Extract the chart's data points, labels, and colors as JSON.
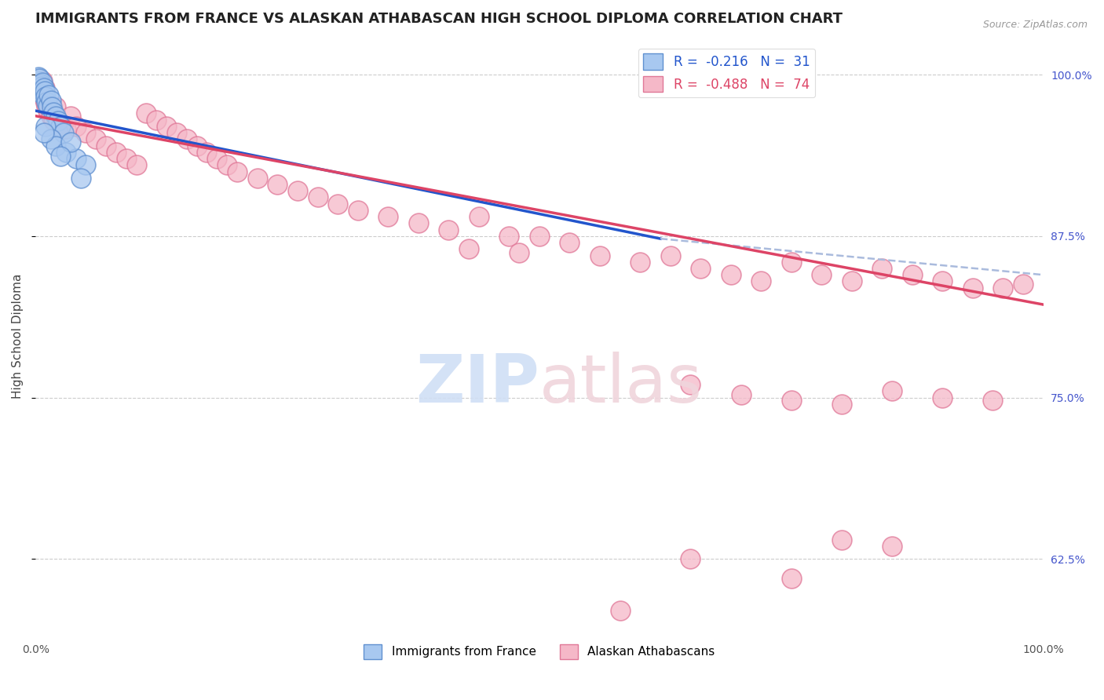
{
  "title": "IMMIGRANTS FROM FRANCE VS ALASKAN ATHABASCAN HIGH SCHOOL DIPLOMA CORRELATION CHART",
  "source": "Source: ZipAtlas.com",
  "ylabel": "High School Diploma",
  "xmin": 0.0,
  "xmax": 1.0,
  "ymin": 0.565,
  "ymax": 1.03,
  "yticks": [
    0.625,
    0.75,
    0.875,
    1.0
  ],
  "ytick_labels": [
    "62.5%",
    "75.0%",
    "87.5%",
    "100.0%"
  ],
  "xtick_labels": [
    "0.0%",
    "100.0%"
  ],
  "blue_label": "Immigrants from France",
  "pink_label": "Alaskan Athabascans",
  "blue_R": -0.216,
  "blue_N": 31,
  "pink_R": -0.488,
  "pink_N": 74,
  "blue_color": "#a8c8f0",
  "pink_color": "#f5b8c8",
  "blue_edge": "#6090d0",
  "pink_edge": "#e07898",
  "blue_line_color": "#2255cc",
  "pink_line_color": "#dd4466",
  "dash_line_color": "#aabbdd",
  "blue_line_y0": 0.972,
  "blue_line_y1": 0.873,
  "blue_line_x1": 0.62,
  "dash_line_x0": 0.62,
  "dash_line_x1": 1.0,
  "dash_line_y0": 0.873,
  "dash_line_y1": 0.845,
  "pink_line_y0": 0.968,
  "pink_line_y1": 0.822,
  "blue_scatter": [
    [
      0.002,
      0.995
    ],
    [
      0.003,
      0.998
    ],
    [
      0.004,
      0.997
    ],
    [
      0.005,
      0.993
    ],
    [
      0.005,
      0.988
    ],
    [
      0.006,
      0.991
    ],
    [
      0.007,
      0.985
    ],
    [
      0.007,
      0.994
    ],
    [
      0.008,
      0.99
    ],
    [
      0.009,
      0.987
    ],
    [
      0.01,
      0.983
    ],
    [
      0.011,
      0.979
    ],
    [
      0.012,
      0.976
    ],
    [
      0.013,
      0.984
    ],
    [
      0.015,
      0.98
    ],
    [
      0.016,
      0.975
    ],
    [
      0.018,
      0.971
    ],
    [
      0.02,
      0.968
    ],
    [
      0.022,
      0.964
    ],
    [
      0.025,
      0.96
    ],
    [
      0.028,
      0.955
    ],
    [
      0.01,
      0.96
    ],
    [
      0.015,
      0.95
    ],
    [
      0.02,
      0.945
    ],
    [
      0.03,
      0.94
    ],
    [
      0.04,
      0.935
    ],
    [
      0.05,
      0.93
    ],
    [
      0.008,
      0.955
    ],
    [
      0.035,
      0.948
    ],
    [
      0.025,
      0.937
    ],
    [
      0.045,
      0.92
    ]
  ],
  "pink_scatter": [
    [
      0.002,
      0.993
    ],
    [
      0.004,
      0.988
    ],
    [
      0.006,
      0.985
    ],
    [
      0.007,
      0.995
    ],
    [
      0.008,
      0.982
    ],
    [
      0.009,
      0.99
    ],
    [
      0.01,
      0.978
    ],
    [
      0.011,
      0.975
    ],
    [
      0.012,
      0.972
    ],
    [
      0.015,
      0.968
    ],
    [
      0.018,
      0.965
    ],
    [
      0.02,
      0.975
    ],
    [
      0.025,
      0.962
    ],
    [
      0.03,
      0.958
    ],
    [
      0.035,
      0.968
    ],
    [
      0.04,
      0.96
    ],
    [
      0.05,
      0.955
    ],
    [
      0.06,
      0.95
    ],
    [
      0.07,
      0.945
    ],
    [
      0.08,
      0.94
    ],
    [
      0.09,
      0.935
    ],
    [
      0.1,
      0.93
    ],
    [
      0.11,
      0.97
    ],
    [
      0.12,
      0.965
    ],
    [
      0.13,
      0.96
    ],
    [
      0.14,
      0.955
    ],
    [
      0.15,
      0.95
    ],
    [
      0.16,
      0.945
    ],
    [
      0.17,
      0.94
    ],
    [
      0.18,
      0.935
    ],
    [
      0.19,
      0.93
    ],
    [
      0.2,
      0.925
    ],
    [
      0.22,
      0.92
    ],
    [
      0.24,
      0.915
    ],
    [
      0.26,
      0.91
    ],
    [
      0.28,
      0.905
    ],
    [
      0.3,
      0.9
    ],
    [
      0.32,
      0.895
    ],
    [
      0.35,
      0.89
    ],
    [
      0.38,
      0.885
    ],
    [
      0.41,
      0.88
    ],
    [
      0.44,
      0.89
    ],
    [
      0.47,
      0.875
    ],
    [
      0.5,
      0.875
    ],
    [
      0.53,
      0.87
    ],
    [
      0.56,
      0.86
    ],
    [
      0.43,
      0.865
    ],
    [
      0.48,
      0.862
    ],
    [
      0.6,
      0.855
    ],
    [
      0.63,
      0.86
    ],
    [
      0.66,
      0.85
    ],
    [
      0.69,
      0.845
    ],
    [
      0.72,
      0.84
    ],
    [
      0.75,
      0.855
    ],
    [
      0.78,
      0.845
    ],
    [
      0.81,
      0.84
    ],
    [
      0.84,
      0.85
    ],
    [
      0.87,
      0.845
    ],
    [
      0.9,
      0.84
    ],
    [
      0.93,
      0.835
    ],
    [
      0.96,
      0.835
    ],
    [
      0.98,
      0.838
    ],
    [
      0.65,
      0.76
    ],
    [
      0.7,
      0.752
    ],
    [
      0.75,
      0.748
    ],
    [
      0.8,
      0.745
    ],
    [
      0.85,
      0.755
    ],
    [
      0.9,
      0.75
    ],
    [
      0.95,
      0.748
    ],
    [
      0.75,
      0.61
    ],
    [
      0.8,
      0.64
    ],
    [
      0.85,
      0.635
    ],
    [
      0.58,
      0.585
    ],
    [
      0.65,
      0.625
    ]
  ],
  "watermark_zip_color": "#d0dff5",
  "watermark_atlas_color": "#f0d5dc",
  "background_color": "#ffffff",
  "grid_color": "#cccccc",
  "title_fontsize": 13,
  "axis_fontsize": 11
}
